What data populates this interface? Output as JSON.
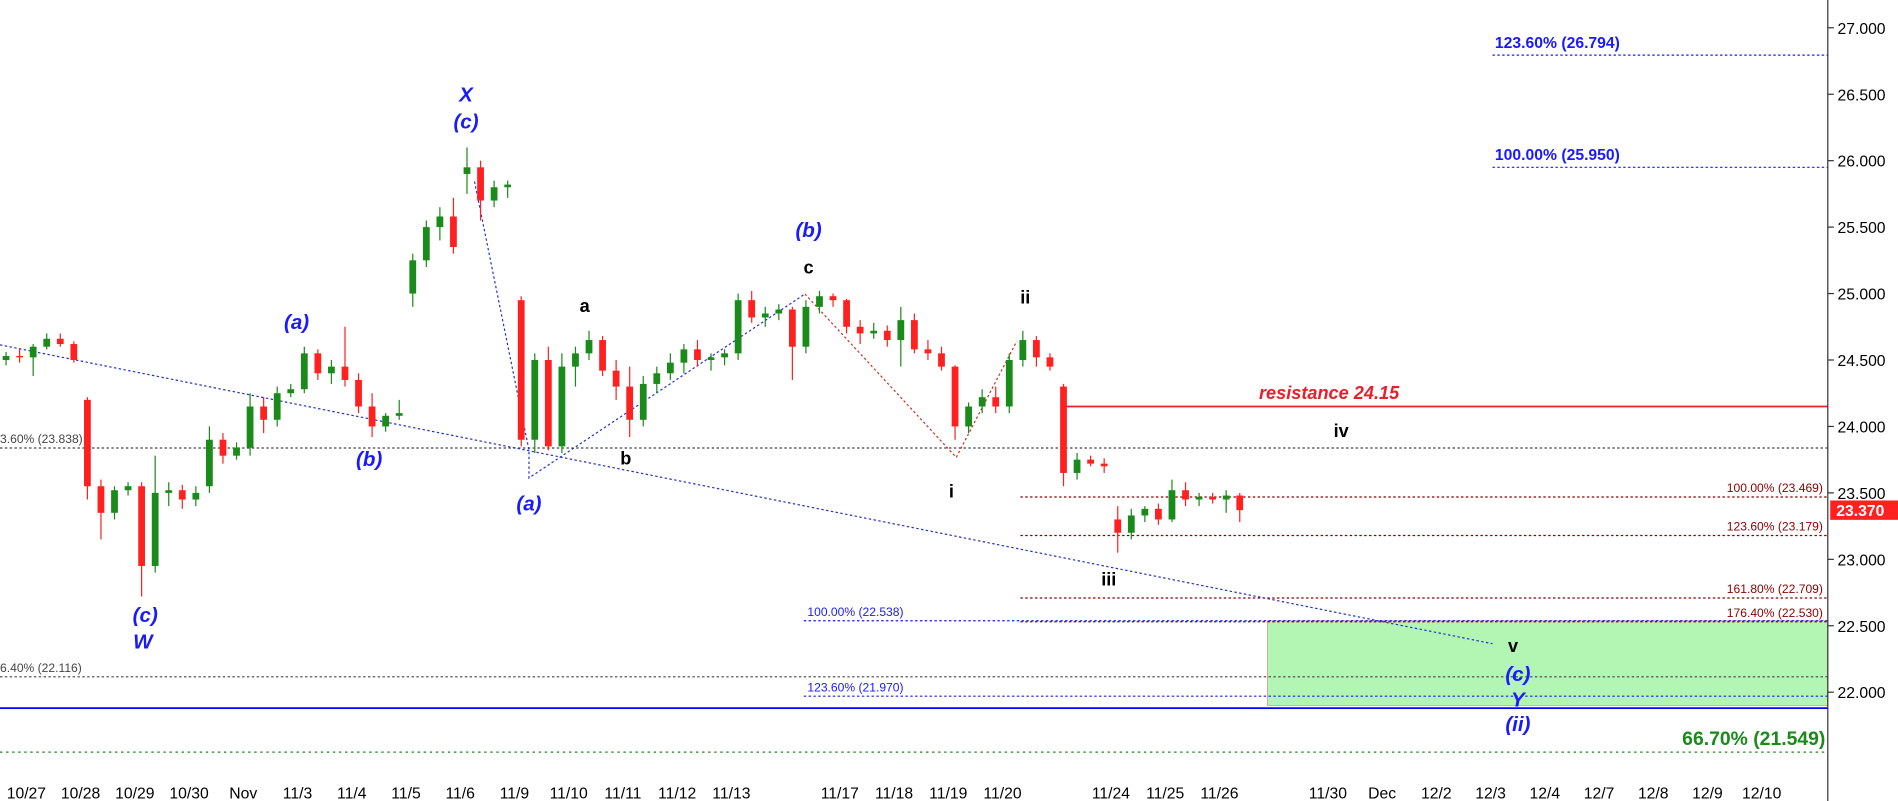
{
  "chart_data": {
    "type": "candlestick",
    "up_color": "#1a8a1a",
    "down_color": "#ff2020",
    "ylim": [
      21.5,
      27.2
    ],
    "yticks": [
      {
        "value": 22,
        "label": "22.000"
      },
      {
        "value": 22.5,
        "label": "22.500"
      },
      {
        "value": 23,
        "label": "23.000"
      },
      {
        "value": 23.5,
        "label": "23.500"
      },
      {
        "value": 24,
        "label": "24.000"
      },
      {
        "value": 24.5,
        "label": "24.500"
      },
      {
        "value": 25,
        "label": "25.000"
      },
      {
        "value": 25.5,
        "label": "25.500"
      },
      {
        "value": 26,
        "label": "26.000"
      },
      {
        "value": 26.5,
        "label": "26.500"
      },
      {
        "value": 27,
        "label": "27.000"
      }
    ],
    "last_price": {
      "value": 23.37,
      "label": "23.370",
      "color": "#ff2020"
    },
    "categories": [
      null,
      null,
      null,
      null,
      "10/27",
      null,
      null,
      null,
      "10/28",
      null,
      null,
      null,
      "10/29",
      null,
      null,
      null,
      "10/30",
      null,
      null,
      null,
      "Nov",
      null,
      null,
      null,
      "11/3",
      null,
      null,
      null,
      "11/4",
      null,
      null,
      null,
      "11/5",
      null,
      null,
      null,
      "11/6",
      null,
      null,
      null,
      "11/9",
      null,
      null,
      null,
      "11/10",
      null,
      null,
      null,
      "11/11",
      null,
      null,
      null,
      "11/12",
      null,
      null,
      null,
      "11/13",
      null,
      null,
      null,
      null,
      null,
      null,
      null,
      "11/17",
      null,
      null,
      null,
      "11/18",
      null,
      null,
      null,
      "11/19",
      null,
      null,
      null,
      "11/20",
      null,
      null,
      null,
      null,
      null,
      null,
      null,
      "11/24",
      null,
      null,
      null,
      "11/25",
      null,
      null,
      null,
      "11/26",
      null,
      null,
      null,
      null,
      null,
      null,
      null,
      "11/30",
      null,
      null,
      null,
      "Dec",
      null,
      null,
      null,
      "12/2",
      null,
      null,
      null,
      "12/3",
      null,
      null,
      null,
      "12/4",
      null,
      null,
      null,
      "12/7",
      null,
      null,
      null,
      "12/8",
      null,
      null,
      null,
      "12/9",
      null,
      null,
      null,
      "12/10",
      null,
      null,
      null
    ],
    "ohlc": [
      null,
      null,
      [
        24.5,
        24.56,
        24.46,
        24.53
      ],
      [
        24.53,
        24.58,
        24.48,
        24.52
      ],
      [
        24.52,
        24.62,
        24.38,
        24.6
      ],
      [
        24.6,
        24.7,
        24.58,
        24.66
      ],
      [
        24.66,
        24.7,
        24.6,
        24.62
      ],
      [
        24.62,
        24.64,
        24.48,
        24.5
      ],
      [
        24.2,
        24.22,
        23.45,
        23.55
      ],
      [
        23.55,
        23.6,
        23.15,
        23.35
      ],
      [
        23.35,
        23.55,
        23.3,
        23.52
      ],
      [
        23.52,
        23.58,
        23.48,
        23.55
      ],
      [
        23.55,
        23.58,
        22.72,
        22.95
      ],
      [
        22.95,
        23.78,
        22.9,
        23.5
      ],
      [
        23.5,
        23.58,
        23.4,
        23.52
      ],
      [
        23.52,
        23.56,
        23.38,
        23.45
      ],
      [
        23.45,
        23.55,
        23.4,
        23.5
      ],
      [
        23.55,
        24.0,
        23.5,
        23.9
      ],
      [
        23.9,
        23.95,
        23.72,
        23.78
      ],
      [
        23.78,
        23.88,
        23.75,
        23.84
      ],
      [
        23.84,
        24.25,
        23.78,
        24.15
      ],
      [
        24.15,
        24.22,
        23.95,
        24.05
      ],
      [
        24.05,
        24.3,
        24.0,
        24.25
      ],
      [
        24.25,
        24.32,
        24.22,
        24.28
      ],
      [
        24.28,
        24.6,
        24.25,
        24.55
      ],
      [
        24.55,
        24.58,
        24.35,
        24.4
      ],
      [
        24.4,
        24.5,
        24.32,
        24.45
      ],
      [
        24.45,
        24.75,
        24.3,
        24.35
      ],
      [
        24.35,
        24.4,
        24.1,
        24.15
      ],
      [
        24.15,
        24.25,
        23.92,
        24.0
      ],
      [
        24.0,
        24.1,
        23.96,
        24.08
      ],
      [
        24.08,
        24.2,
        24.05,
        24.1
      ],
      [
        25.0,
        25.3,
        24.9,
        25.25
      ],
      [
        25.25,
        25.55,
        25.2,
        25.5
      ],
      [
        25.5,
        25.65,
        25.4,
        25.58
      ],
      [
        25.58,
        25.72,
        25.3,
        25.35
      ],
      [
        25.9,
        26.1,
        25.75,
        25.95
      ],
      [
        25.95,
        26.0,
        25.55,
        25.7
      ],
      [
        25.7,
        25.85,
        25.65,
        25.8
      ],
      [
        25.8,
        25.85,
        25.72,
        25.82
      ],
      [
        24.95,
        24.98,
        23.85,
        23.9
      ],
      [
        23.9,
        24.55,
        23.8,
        24.5
      ],
      [
        24.5,
        24.6,
        23.82,
        23.85
      ],
      [
        23.85,
        24.55,
        23.8,
        24.45
      ],
      [
        24.45,
        24.6,
        24.3,
        24.55
      ],
      [
        24.55,
        24.72,
        24.5,
        24.65
      ],
      [
        24.65,
        24.68,
        24.38,
        24.42
      ],
      [
        24.42,
        24.5,
        24.2,
        24.3
      ],
      [
        24.3,
        24.45,
        23.92,
        24.05
      ],
      [
        24.05,
        24.38,
        24.0,
        24.32
      ],
      [
        24.32,
        24.45,
        24.25,
        24.4
      ],
      [
        24.4,
        24.55,
        24.35,
        24.48
      ],
      [
        24.48,
        24.62,
        24.4,
        24.58
      ],
      [
        24.58,
        24.65,
        24.45,
        24.5
      ],
      [
        24.5,
        24.55,
        24.42,
        24.52
      ],
      [
        24.52,
        24.58,
        24.46,
        24.55
      ],
      [
        24.55,
        25.0,
        24.5,
        24.95
      ],
      [
        24.95,
        25.02,
        24.78,
        24.82
      ],
      [
        24.82,
        24.9,
        24.75,
        24.85
      ],
      [
        24.85,
        24.92,
        24.8,
        24.88
      ],
      [
        24.88,
        24.9,
        24.35,
        24.6
      ],
      [
        24.6,
        24.95,
        24.55,
        24.9
      ],
      [
        24.9,
        25.02,
        24.85,
        24.98
      ],
      [
        24.98,
        25.0,
        24.9,
        24.95
      ],
      [
        24.95,
        24.96,
        24.7,
        24.75
      ],
      [
        24.75,
        24.8,
        24.62,
        24.7
      ],
      [
        24.7,
        24.78,
        24.66,
        24.72
      ],
      [
        24.72,
        24.76,
        24.6,
        24.65
      ],
      [
        24.65,
        24.9,
        24.45,
        24.8
      ],
      [
        24.8,
        24.85,
        24.55,
        24.58
      ],
      [
        24.58,
        24.65,
        24.5,
        24.55
      ],
      [
        24.55,
        24.6,
        24.42,
        24.45
      ],
      [
        24.45,
        24.46,
        23.9,
        24.0
      ],
      [
        24.0,
        24.18,
        23.95,
        24.15
      ],
      [
        24.15,
        24.28,
        24.1,
        24.22
      ],
      [
        24.22,
        24.3,
        24.1,
        24.15
      ],
      [
        24.15,
        24.55,
        24.1,
        24.5
      ],
      [
        24.5,
        24.72,
        24.45,
        24.65
      ],
      [
        24.65,
        24.68,
        24.45,
        24.52
      ],
      [
        24.52,
        24.55,
        24.42,
        24.45
      ],
      [
        24.3,
        24.32,
        23.55,
        23.65
      ],
      [
        23.65,
        23.8,
        23.6,
        23.75
      ],
      [
        23.75,
        23.78,
        23.7,
        23.72
      ],
      [
        23.72,
        23.76,
        23.65,
        23.7
      ],
      [
        23.3,
        23.4,
        23.05,
        23.2
      ],
      [
        23.2,
        23.38,
        23.15,
        23.33
      ],
      [
        23.33,
        23.4,
        23.28,
        23.38
      ],
      [
        23.38,
        23.42,
        23.26,
        23.3
      ],
      [
        23.3,
        23.6,
        23.28,
        23.52
      ],
      [
        23.52,
        23.58,
        23.4,
        23.45
      ],
      [
        23.45,
        23.5,
        23.4,
        23.47
      ],
      [
        23.47,
        23.5,
        23.42,
        23.45
      ],
      [
        23.45,
        23.52,
        23.35,
        23.48
      ],
      [
        23.48,
        23.5,
        23.28,
        23.37
      ],
      null,
      null,
      null,
      null,
      null,
      null,
      null,
      null,
      null,
      null,
      null,
      null,
      null,
      null,
      null,
      null,
      null,
      null,
      null,
      null,
      null,
      null,
      null,
      null,
      null,
      null,
      null,
      null,
      null,
      null,
      null,
      null,
      null,
      null,
      null,
      null,
      null,
      null,
      null,
      null,
      null,
      null
    ],
    "levels": [
      {
        "value": 26.794,
        "label": "123.60% (26.794)",
        "color": "#1a1aff"
      },
      {
        "value": 25.95,
        "label": "100.00% (25.950)",
        "color": "#1a1aff"
      },
      {
        "value": 23.838,
        "label": "3.60% (23.838)",
        "color": "#444444"
      },
      {
        "value": 23.469,
        "label": "100.00% (23.469)",
        "color": "#8b0000"
      },
      {
        "value": 23.179,
        "label": "123.60% (23.179)",
        "color": "#8b0000"
      },
      {
        "value": 22.709,
        "label": "161.80% (22.709)",
        "color": "#8b0000"
      },
      {
        "value": 22.53,
        "label": "176.40% (22.530)",
        "color": "#8b0000"
      },
      {
        "value": 22.538,
        "label": "100.00% (22.538)",
        "color": "#1a1aff"
      },
      {
        "value": 21.97,
        "label": "123.60% (21.970)",
        "color": "#1a1aff"
      },
      {
        "value": 22.116,
        "label": "6.40% (22.116)",
        "color": "#444444"
      },
      {
        "value": 21.549,
        "label": "66.70% (21.549)",
        "color": "#1a8a1a"
      },
      {
        "value": 24.15,
        "label": "resistance 24.15",
        "color": "#e8202a"
      },
      {
        "value": 21.88,
        "color": "#0000ff"
      }
    ],
    "zone": {
      "low": 21.9,
      "high": 22.538,
      "color": "#b3f5b3"
    },
    "annotations": [
      {
        "text": "X",
        "color": "#1a1aff"
      },
      {
        "text": "(c)",
        "color": "#1a1aff"
      },
      {
        "text": "(b)",
        "color": "#1a1aff"
      },
      {
        "text": "c",
        "color": "#000000"
      },
      {
        "text": "a",
        "color": "#000000"
      },
      {
        "text": "b",
        "color": "#000000"
      },
      {
        "text": "(a)",
        "color": "#1a1aff"
      },
      {
        "text": "(b)",
        "color": "#1a1aff"
      },
      {
        "text": "(a)",
        "color": "#1a1aff"
      },
      {
        "text": "(c)",
        "color": "#1a1aff"
      },
      {
        "text": "W",
        "color": "#1a1aff"
      },
      {
        "text": "ii",
        "color": "#000000"
      },
      {
        "text": "i",
        "color": "#000000"
      },
      {
        "text": "iii",
        "color": "#000000"
      },
      {
        "text": "iv",
        "color": "#000000"
      },
      {
        "text": "v",
        "color": "#000000"
      },
      {
        "text": "(c)",
        "color": "#1a1aff"
      },
      {
        "text": "Y",
        "color": "#1a1aff"
      },
      {
        "text": "(ii)",
        "color": "#1a1aff"
      }
    ]
  }
}
